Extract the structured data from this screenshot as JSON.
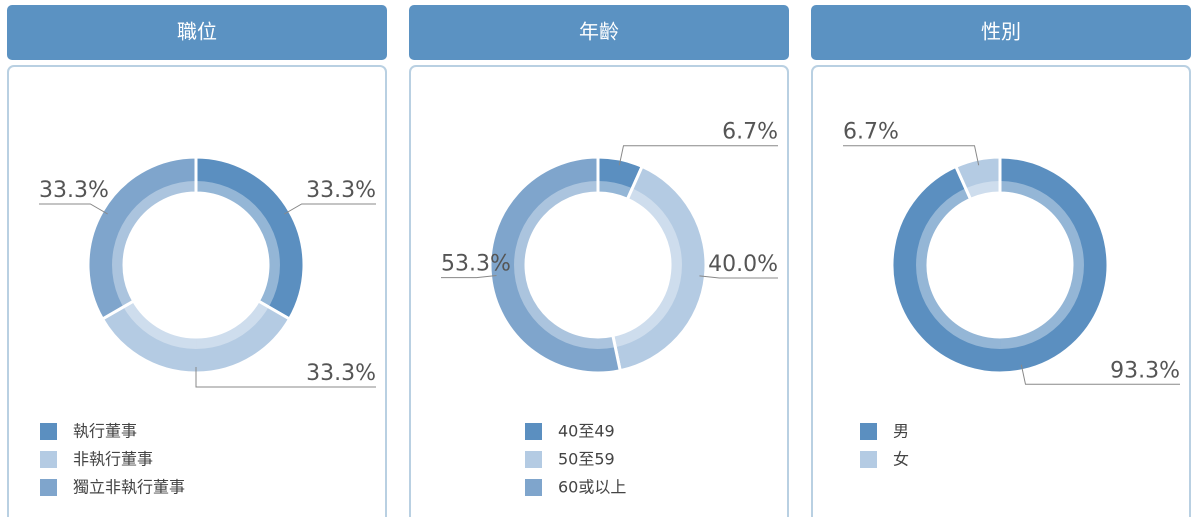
{
  "chart_data": [
    {
      "type": "pie",
      "title": "職位",
      "categories": [
        "執行董事",
        "非執行董事",
        "獨立非執行董事"
      ],
      "values": [
        33.3,
        33.3,
        33.3
      ],
      "value_labels": [
        "33.3%",
        "33.3%",
        "33.3%"
      ],
      "colors": [
        "#5b8fc0",
        "#b4cbe3",
        "#7fa5cc"
      ]
    },
    {
      "type": "pie",
      "title": "年齡",
      "categories": [
        "40至49",
        "50至59",
        "60或以上"
      ],
      "values": [
        6.7,
        40.0,
        53.3
      ],
      "value_labels": [
        "6.7%",
        "40.0%",
        "53.3%"
      ],
      "colors": [
        "#5b8fc0",
        "#b4cbe3",
        "#7fa5cc"
      ]
    },
    {
      "type": "pie",
      "title": "性別",
      "categories": [
        "男",
        "女"
      ],
      "values": [
        93.3,
        6.7
      ],
      "value_labels": [
        "93.3%",
        "6.7%"
      ],
      "colors": [
        "#5b8fc0",
        "#b4cbe3"
      ]
    }
  ]
}
